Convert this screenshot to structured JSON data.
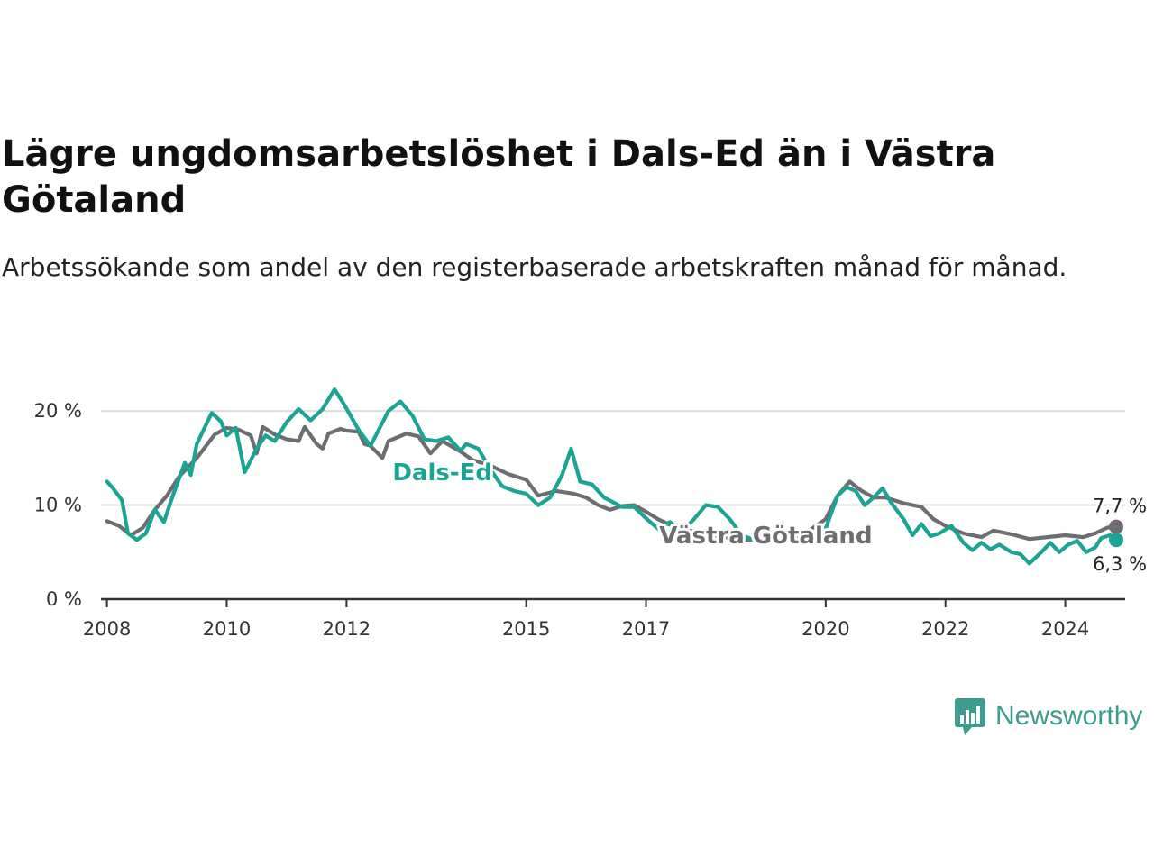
{
  "title": "Lägre ungdomsarbetslöshet i Dals-Ed än i Västra Götaland",
  "subtitle": "Arbetssökande som andel av den registerbaserade arbetskraften månad för månad.",
  "brand": {
    "name": "Newsworthy"
  },
  "colors": {
    "dals_ed": "#1aa493",
    "vastra_gotaland": "#6e6e72",
    "grid": "#dddddd",
    "axis": "#333333"
  },
  "chart_data": {
    "type": "line",
    "x_unit": "year",
    "xlim": [
      2007.9,
      2025.0
    ],
    "ylim": [
      0,
      22.5
    ],
    "yticks": [
      {
        "value": 0,
        "label": "0 %"
      },
      {
        "value": 10,
        "label": "10 %"
      },
      {
        "value": 20,
        "label": "20 %"
      }
    ],
    "xticks": [
      {
        "value": 2008,
        "label": "2008"
      },
      {
        "value": 2010,
        "label": "2010"
      },
      {
        "value": 2012,
        "label": "2012"
      },
      {
        "value": 2015,
        "label": "2015"
      },
      {
        "value": 2017,
        "label": "2017"
      },
      {
        "value": 2020,
        "label": "2020"
      },
      {
        "value": 2022,
        "label": "2022"
      },
      {
        "value": 2024,
        "label": "2024"
      }
    ],
    "grid": true,
    "series": [
      {
        "name": "Västra Götaland",
        "end_label": "7,7 %",
        "points": [
          [
            2008.0,
            8.3
          ],
          [
            2008.2,
            7.8
          ],
          [
            2008.4,
            6.8
          ],
          [
            2008.6,
            7.6
          ],
          [
            2008.8,
            9.5
          ],
          [
            2009.0,
            11.0
          ],
          [
            2009.2,
            13.0
          ],
          [
            2009.5,
            15.0
          ],
          [
            2009.8,
            17.5
          ],
          [
            2010.0,
            18.2
          ],
          [
            2010.2,
            18.0
          ],
          [
            2010.4,
            17.4
          ],
          [
            2010.5,
            15.5
          ],
          [
            2010.6,
            18.3
          ],
          [
            2010.8,
            17.5
          ],
          [
            2011.0,
            17.0
          ],
          [
            2011.2,
            16.8
          ],
          [
            2011.3,
            18.3
          ],
          [
            2011.5,
            16.5
          ],
          [
            2011.6,
            16.0
          ],
          [
            2011.7,
            17.6
          ],
          [
            2011.9,
            18.1
          ],
          [
            2012.0,
            17.9
          ],
          [
            2012.2,
            17.8
          ],
          [
            2012.3,
            16.5
          ],
          [
            2012.4,
            16.3
          ],
          [
            2012.6,
            15.0
          ],
          [
            2012.7,
            16.8
          ],
          [
            2013.0,
            17.6
          ],
          [
            2013.2,
            17.3
          ],
          [
            2013.4,
            15.5
          ],
          [
            2013.6,
            16.8
          ],
          [
            2013.9,
            15.7
          ],
          [
            2014.1,
            14.8
          ],
          [
            2014.4,
            14.2
          ],
          [
            2014.7,
            13.3
          ],
          [
            2015.0,
            12.7
          ],
          [
            2015.2,
            11.0
          ],
          [
            2015.5,
            11.5
          ],
          [
            2015.8,
            11.2
          ],
          [
            2016.0,
            10.8
          ],
          [
            2016.2,
            10.0
          ],
          [
            2016.4,
            9.5
          ],
          [
            2016.6,
            9.9
          ],
          [
            2016.8,
            10.0
          ],
          [
            2017.0,
            9.3
          ],
          [
            2017.2,
            8.5
          ],
          [
            2017.5,
            7.6
          ],
          [
            2017.8,
            7.2
          ],
          [
            2018.0,
            7.0
          ],
          [
            2018.3,
            6.6
          ],
          [
            2018.6,
            6.3
          ],
          [
            2019.0,
            6.4
          ],
          [
            2019.3,
            6.6
          ],
          [
            2019.7,
            7.2
          ],
          [
            2020.0,
            8.5
          ],
          [
            2020.2,
            11.0
          ],
          [
            2020.4,
            12.5
          ],
          [
            2020.6,
            11.5
          ],
          [
            2020.8,
            10.8
          ],
          [
            2021.0,
            10.8
          ],
          [
            2021.3,
            10.2
          ],
          [
            2021.6,
            9.8
          ],
          [
            2021.8,
            8.5
          ],
          [
            2022.0,
            7.8
          ],
          [
            2022.3,
            7.0
          ],
          [
            2022.6,
            6.6
          ],
          [
            2022.8,
            7.3
          ],
          [
            2023.1,
            6.9
          ],
          [
            2023.4,
            6.4
          ],
          [
            2023.7,
            6.6
          ],
          [
            2024.0,
            6.8
          ],
          [
            2024.3,
            6.6
          ],
          [
            2024.5,
            7.0
          ],
          [
            2024.7,
            7.6
          ],
          [
            2024.85,
            7.7
          ]
        ]
      },
      {
        "name": "Dals-Ed",
        "end_label": "6,3 %",
        "points": [
          [
            2008.0,
            12.5
          ],
          [
            2008.1,
            11.8
          ],
          [
            2008.25,
            10.5
          ],
          [
            2008.35,
            7.0
          ],
          [
            2008.5,
            6.3
          ],
          [
            2008.65,
            7.0
          ],
          [
            2008.8,
            9.5
          ],
          [
            2008.95,
            8.2
          ],
          [
            2009.1,
            11.0
          ],
          [
            2009.3,
            14.5
          ],
          [
            2009.4,
            13.2
          ],
          [
            2009.5,
            16.5
          ],
          [
            2009.75,
            19.8
          ],
          [
            2009.9,
            18.9
          ],
          [
            2010.0,
            17.4
          ],
          [
            2010.15,
            18.2
          ],
          [
            2010.3,
            13.5
          ],
          [
            2010.5,
            16.0
          ],
          [
            2010.65,
            17.4
          ],
          [
            2010.8,
            16.8
          ],
          [
            2011.0,
            18.8
          ],
          [
            2011.2,
            20.2
          ],
          [
            2011.4,
            19.0
          ],
          [
            2011.6,
            20.2
          ],
          [
            2011.8,
            22.3
          ],
          [
            2011.95,
            20.8
          ],
          [
            2012.2,
            18.0
          ],
          [
            2012.4,
            16.3
          ],
          [
            2012.7,
            20.0
          ],
          [
            2012.9,
            21.0
          ],
          [
            2013.1,
            19.5
          ],
          [
            2013.3,
            17.0
          ],
          [
            2013.5,
            16.8
          ],
          [
            2013.7,
            17.2
          ],
          [
            2013.9,
            15.8
          ],
          [
            2014.0,
            16.5
          ],
          [
            2014.2,
            16.0
          ],
          [
            2014.4,
            13.8
          ],
          [
            2014.6,
            12.0
          ],
          [
            2014.8,
            11.5
          ],
          [
            2015.0,
            11.2
          ],
          [
            2015.2,
            10.0
          ],
          [
            2015.4,
            10.8
          ],
          [
            2015.6,
            13.2
          ],
          [
            2015.75,
            16.0
          ],
          [
            2015.9,
            12.5
          ],
          [
            2016.1,
            12.2
          ],
          [
            2016.3,
            10.8
          ],
          [
            2016.45,
            10.3
          ],
          [
            2016.6,
            9.8
          ],
          [
            2016.8,
            9.8
          ],
          [
            2017.0,
            8.6
          ],
          [
            2017.2,
            7.5
          ],
          [
            2017.4,
            8.2
          ],
          [
            2017.6,
            7.2
          ],
          [
            2017.8,
            8.5
          ],
          [
            2018.0,
            10.0
          ],
          [
            2018.2,
            9.8
          ],
          [
            2018.4,
            8.5
          ],
          [
            2018.6,
            6.8
          ],
          [
            2018.8,
            6.3
          ],
          [
            2019.0,
            6.8
          ],
          [
            2019.3,
            7.0
          ],
          [
            2019.6,
            6.5
          ],
          [
            2019.8,
            6.0
          ],
          [
            2020.0,
            7.5
          ],
          [
            2020.2,
            11.0
          ],
          [
            2020.35,
            11.9
          ],
          [
            2020.5,
            11.5
          ],
          [
            2020.65,
            10.0
          ],
          [
            2020.8,
            10.8
          ],
          [
            2020.95,
            11.8
          ],
          [
            2021.1,
            10.2
          ],
          [
            2021.3,
            8.5
          ],
          [
            2021.45,
            6.8
          ],
          [
            2021.6,
            8.0
          ],
          [
            2021.75,
            6.7
          ],
          [
            2021.9,
            7.0
          ],
          [
            2022.1,
            7.8
          ],
          [
            2022.3,
            6.0
          ],
          [
            2022.45,
            5.2
          ],
          [
            2022.6,
            6.0
          ],
          [
            2022.75,
            5.3
          ],
          [
            2022.9,
            5.8
          ],
          [
            2023.1,
            5.0
          ],
          [
            2023.25,
            4.8
          ],
          [
            2023.4,
            3.8
          ],
          [
            2023.6,
            5.0
          ],
          [
            2023.75,
            6.0
          ],
          [
            2023.9,
            5.0
          ],
          [
            2024.05,
            5.8
          ],
          [
            2024.2,
            6.2
          ],
          [
            2024.35,
            5.0
          ],
          [
            2024.5,
            5.5
          ],
          [
            2024.6,
            6.5
          ],
          [
            2024.75,
            6.8
          ],
          [
            2024.85,
            6.3
          ]
        ]
      }
    ],
    "series_labels": [
      {
        "series": "Dals-Ed",
        "text": "Dals-Ed",
        "at": [
          2013.6,
          13.5
        ]
      },
      {
        "series": "Västra Götaland",
        "text": "Västra Götaland",
        "at": [
          2019.0,
          6.8
        ]
      }
    ]
  }
}
